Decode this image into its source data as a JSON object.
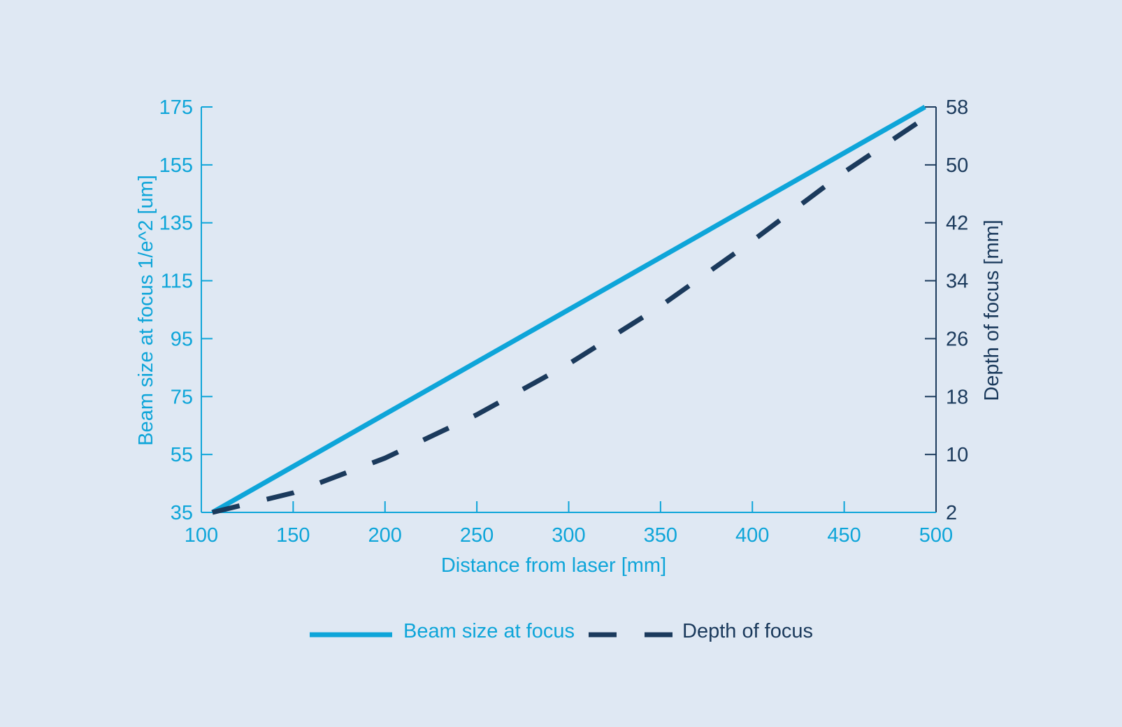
{
  "colors": {
    "background": "#dfe8f3",
    "left_axis": "#0ea5d9",
    "right_axis": "#1b3a5c",
    "beam_series": "#0ea5d9",
    "depth_series": "#1b3a5c"
  },
  "chart_data": {
    "type": "line",
    "xlabel": "Distance from laser [mm]",
    "ylabel": "Beam size at focus 1/e^2 [um]",
    "y2label": "Depth of focus [mm]",
    "xlim": [
      100,
      500
    ],
    "ylim": [
      35,
      175
    ],
    "y2lim": [
      2,
      58
    ],
    "x_ticks": [
      100,
      150,
      200,
      250,
      300,
      350,
      400,
      450,
      500
    ],
    "y_ticks": [
      35,
      55,
      75,
      95,
      115,
      135,
      155,
      175
    ],
    "y2_ticks": [
      2,
      10,
      18,
      26,
      34,
      42,
      50,
      58
    ],
    "grid": false,
    "legend_position": "bottom",
    "series": [
      {
        "name": "Beam size at focus",
        "axis": "left",
        "style": "solid",
        "x": [
          106,
          494
        ],
        "y": [
          35,
          175
        ]
      },
      {
        "name": "Depth of focus",
        "axis": "right",
        "style": "dashed",
        "x": [
          106,
          150,
          200,
          250,
          300,
          350,
          400,
          450,
          497
        ],
        "y": [
          2,
          4.7,
          9.5,
          15.5,
          22.5,
          30.5,
          39.5,
          49,
          57
        ]
      }
    ]
  }
}
